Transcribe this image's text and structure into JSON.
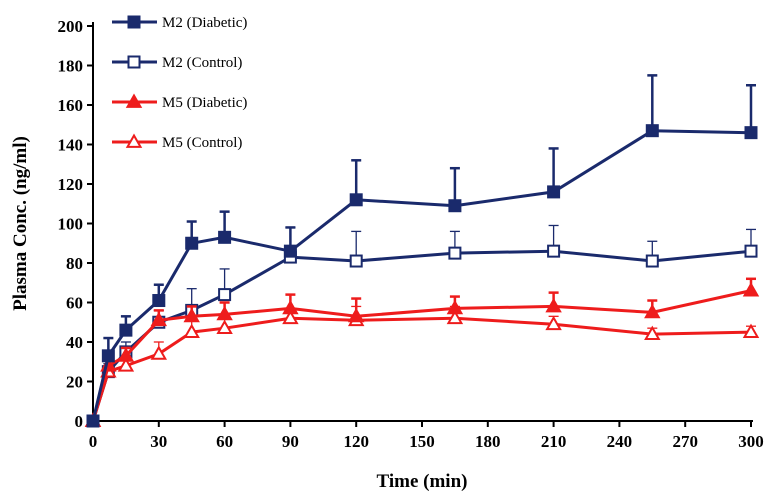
{
  "chart_data": {
    "type": "line",
    "xlabel": "Time (min)",
    "ylabel": "Plasma Conc. (ng/ml)",
    "xlim": [
      0,
      300
    ],
    "ylim": [
      0,
      200
    ],
    "x_ticks": [
      0,
      30,
      60,
      90,
      120,
      150,
      180,
      210,
      240,
      270,
      300
    ],
    "y_ticks": [
      0,
      20,
      40,
      60,
      80,
      100,
      120,
      140,
      160,
      180,
      200
    ],
    "legend_position": "top-left",
    "grid": false,
    "series": [
      {
        "name": "M2 (Diabetic)",
        "color": "#1a2a6c",
        "marker": "square-filled",
        "points": [
          {
            "x": 0,
            "y": 0,
            "err": 0
          },
          {
            "x": 7,
            "y": 33,
            "err": 9
          },
          {
            "x": 15,
            "y": 46,
            "err": 7
          },
          {
            "x": 30,
            "y": 61,
            "err": 8
          },
          {
            "x": 45,
            "y": 90,
            "err": 11
          },
          {
            "x": 60,
            "y": 93,
            "err": 13
          },
          {
            "x": 90,
            "y": 86,
            "err": 12
          },
          {
            "x": 120,
            "y": 112,
            "err": 20
          },
          {
            "x": 165,
            "y": 109,
            "err": 19
          },
          {
            "x": 210,
            "y": 116,
            "err": 22
          },
          {
            "x": 255,
            "y": 147,
            "err": 28
          },
          {
            "x": 300,
            "y": 146,
            "err": 24
          }
        ]
      },
      {
        "name": "M2 (Control)",
        "color": "#1a2a6c",
        "marker": "square-open",
        "points": [
          {
            "x": 0,
            "y": 0,
            "err": 0
          },
          {
            "x": 7,
            "y": 25,
            "err": 4
          },
          {
            "x": 15,
            "y": 35,
            "err": 5
          },
          {
            "x": 30,
            "y": 50,
            "err": 6
          },
          {
            "x": 45,
            "y": 56,
            "err": 11
          },
          {
            "x": 60,
            "y": 64,
            "err": 13
          },
          {
            "x": 90,
            "y": 83,
            "err": 15
          },
          {
            "x": 120,
            "y": 81,
            "err": 15
          },
          {
            "x": 165,
            "y": 85,
            "err": 11
          },
          {
            "x": 210,
            "y": 86,
            "err": 13
          },
          {
            "x": 255,
            "y": 81,
            "err": 10
          },
          {
            "x": 300,
            "y": 86,
            "err": 11
          }
        ]
      },
      {
        "name": "M5 (Diabetic)",
        "color": "#ee1c1c",
        "marker": "triangle-filled",
        "points": [
          {
            "x": 0,
            "y": 0,
            "err": 0
          },
          {
            "x": 7,
            "y": 28,
            "err": 4
          },
          {
            "x": 15,
            "y": 33,
            "err": 4
          },
          {
            "x": 30,
            "y": 51,
            "err": 5
          },
          {
            "x": 45,
            "y": 53,
            "err": 5
          },
          {
            "x": 60,
            "y": 54,
            "err": 6
          },
          {
            "x": 90,
            "y": 57,
            "err": 7
          },
          {
            "x": 120,
            "y": 53,
            "err": 9
          },
          {
            "x": 165,
            "y": 57,
            "err": 6
          },
          {
            "x": 210,
            "y": 58,
            "err": 7
          },
          {
            "x": 255,
            "y": 55,
            "err": 6
          },
          {
            "x": 300,
            "y": 66,
            "err": 6
          }
        ]
      },
      {
        "name": "M5 (Control)",
        "color": "#ee1c1c",
        "marker": "triangle-open",
        "points": [
          {
            "x": 0,
            "y": 0,
            "err": 0
          },
          {
            "x": 7,
            "y": 25,
            "err": 3
          },
          {
            "x": 15,
            "y": 28,
            "err": 3
          },
          {
            "x": 30,
            "y": 34,
            "err": 6
          },
          {
            "x": 45,
            "y": 45,
            "err": 7
          },
          {
            "x": 60,
            "y": 47,
            "err": 5
          },
          {
            "x": 90,
            "y": 52,
            "err": 5
          },
          {
            "x": 120,
            "y": 51,
            "err": 7
          },
          {
            "x": 165,
            "y": 52,
            "err": 6
          },
          {
            "x": 210,
            "y": 49,
            "err": 4
          },
          {
            "x": 255,
            "y": 44,
            "err": 3
          },
          {
            "x": 300,
            "y": 45,
            "err": 3
          }
        ]
      }
    ]
  }
}
